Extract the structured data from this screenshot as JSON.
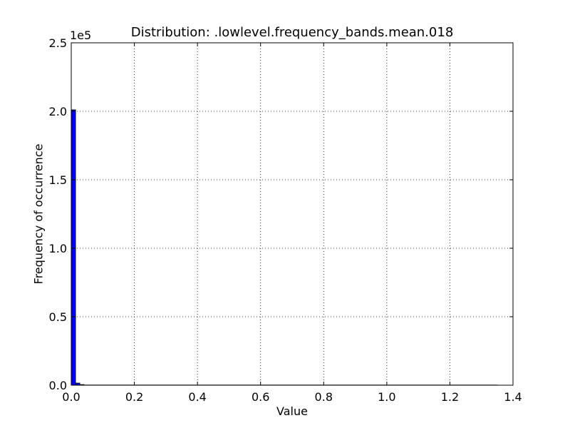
{
  "chart_data": {
    "type": "bar",
    "title": "Distribution: .lowlevel.frequency_bands.mean.018",
    "xlabel": "Value",
    "ylabel": "Frequency of occurrence",
    "y_multiplier_label": "1e5",
    "xlim": [
      0.0,
      1.4
    ],
    "ylim": [
      0,
      250000
    ],
    "x_ticks": [
      0.0,
      0.2,
      0.4,
      0.6,
      0.8,
      1.0,
      1.2,
      1.4
    ],
    "x_tick_labels": [
      "0.0",
      "0.2",
      "0.4",
      "0.6",
      "0.8",
      "1.0",
      "1.2",
      "1.4"
    ],
    "y_ticks": [
      0,
      50000,
      100000,
      150000,
      200000,
      250000
    ],
    "y_tick_labels": [
      "0.0",
      "0.5",
      "1.0",
      "1.5",
      "2.0",
      "2.5"
    ],
    "grid": true,
    "bar_color": "#0000ff",
    "bins": [
      {
        "x0": 0.0,
        "x1": 0.0135,
        "value": 201000
      },
      {
        "x0": 0.0135,
        "x1": 0.027,
        "value": 1500
      },
      {
        "x0": 0.027,
        "x1": 0.0405,
        "value": 400
      },
      {
        "x0": 0.0405,
        "x1": 1.35,
        "value": 100
      }
    ]
  }
}
